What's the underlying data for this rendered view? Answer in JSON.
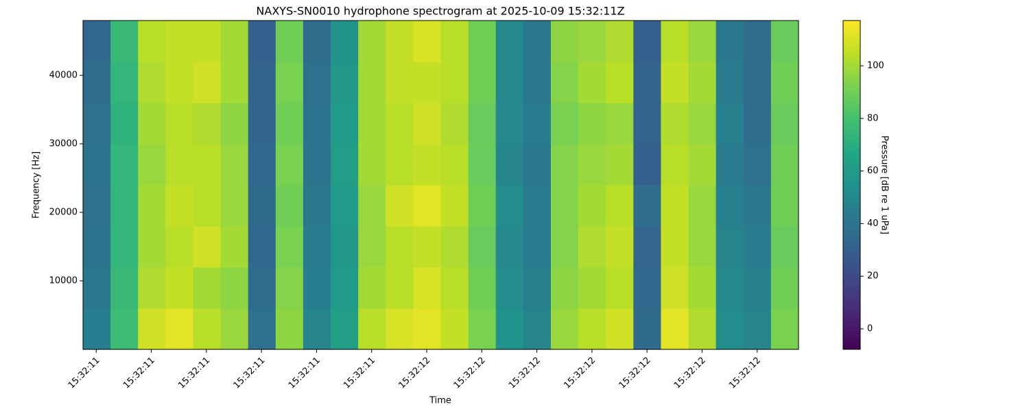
{
  "chart_data": {
    "type": "spectrogram",
    "title": "NAXYS-SN0010 hydrophone spectrogram at 2025-10-09 15:32:11Z",
    "x_label": "Time",
    "y_label": "Frequency [Hz]",
    "colorbar_label": "Pressure [dB re 1 uPa]",
    "colormap": "viridis",
    "xlim": [
      0.76,
      13.75
    ],
    "xticks": [
      {
        "value": 1,
        "label": "15:32:11"
      },
      {
        "value": 2,
        "label": "15:32:11"
      },
      {
        "value": 3,
        "label": "15:32:11"
      },
      {
        "value": 4,
        "label": "15:32:11"
      },
      {
        "value": 5,
        "label": "15:32:11"
      },
      {
        "value": 6,
        "label": "15:32:11"
      },
      {
        "value": 7,
        "label": "15:32:12"
      },
      {
        "value": 8,
        "label": "15:32:12"
      },
      {
        "value": 9,
        "label": "15:32:12"
      },
      {
        "value": 10,
        "label": "15:32:12"
      },
      {
        "value": 11,
        "label": "15:32:12"
      },
      {
        "value": 12,
        "label": "15:32:12"
      },
      {
        "value": 13,
        "label": "15:32:12"
      }
    ],
    "ylim": [
      0,
      48000
    ],
    "yticks": [
      10000,
      20000,
      30000,
      40000
    ],
    "clim": [
      -7.8,
      117.2
    ],
    "cticks": [
      0,
      20,
      40,
      60,
      80,
      100
    ],
    "z": [
      [
        45,
        78,
        108,
        112,
        104,
        98,
        38,
        96,
        48,
        62,
        104,
        110,
        112,
        106,
        92,
        55,
        48,
        98,
        104,
        108,
        35,
        112,
        102,
        52,
        48,
        92
      ],
      [
        42,
        76,
        102,
        106,
        100,
        96,
        36,
        94,
        45,
        60,
        100,
        104,
        110,
        104,
        90,
        52,
        46,
        96,
        100,
        104,
        34,
        108,
        100,
        50,
        46,
        90
      ],
      [
        40,
        74,
        100,
        104,
        108,
        100,
        34,
        92,
        44,
        58,
        98,
        104,
        106,
        102,
        88,
        50,
        44,
        94,
        102,
        106,
        33,
        106,
        98,
        48,
        44,
        88
      ],
      [
        38,
        74,
        100,
        106,
        104,
        98,
        35,
        90,
        42,
        60,
        98,
        108,
        112,
        106,
        90,
        52,
        44,
        94,
        100,
        104,
        36,
        106,
        98,
        46,
        42,
        90
      ],
      [
        40,
        74,
        98,
        104,
        104,
        98,
        34,
        92,
        40,
        62,
        100,
        104,
        106,
        104,
        88,
        48,
        42,
        94,
        98,
        100,
        30,
        104,
        100,
        44,
        38,
        90
      ],
      [
        38,
        72,
        100,
        104,
        102,
        96,
        32,
        90,
        40,
        60,
        100,
        104,
        108,
        102,
        88,
        50,
        44,
        92,
        96,
        98,
        32,
        102,
        98,
        46,
        36,
        88
      ],
      [
        36,
        74,
        102,
        106,
        108,
        100,
        32,
        92,
        38,
        58,
        100,
        106,
        106,
        104,
        90,
        50,
        42,
        94,
        100,
        104,
        32,
        106,
        100,
        44,
        36,
        90
      ],
      [
        34,
        76,
        104,
        106,
        106,
        100,
        30,
        90,
        36,
        56,
        100,
        106,
        110,
        104,
        90,
        50,
        42,
        96,
        98,
        102,
        30,
        104,
        98,
        42,
        36,
        88
      ]
    ]
  }
}
